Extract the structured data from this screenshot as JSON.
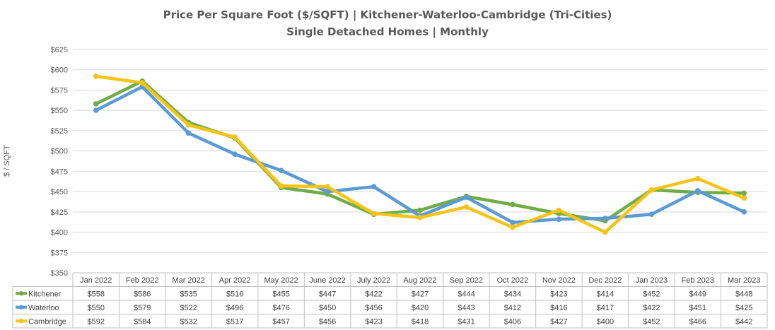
{
  "chart_data": {
    "type": "line",
    "title": "Price Per Square Foot ($/SQFT) | Kitchener-Waterloo-Cambridge (Tri-Cities)",
    "subtitle": "Single Detached Homes | Monthly",
    "ylabel": "$ / SQFT",
    "xlabel": "",
    "ylim": [
      350,
      625
    ],
    "yticks": [
      350,
      375,
      400,
      425,
      450,
      475,
      500,
      525,
      550,
      575,
      600,
      625
    ],
    "ytick_labels": [
      "$350",
      "$375",
      "$400",
      "$425",
      "$450",
      "$475",
      "$500",
      "$525",
      "$550",
      "$575",
      "$600",
      "$625"
    ],
    "grid": true,
    "legend": "data-table-below",
    "categories": [
      "Jan 2022",
      "Feb 2022",
      "Mar 2022",
      "Apr 2022",
      "May 2022",
      "June 2022",
      "July 2022",
      "Aug 2022",
      "Sep 2022",
      "Oct 2022",
      "Nov 2022",
      "Dec 2022",
      "Jan 2023",
      "Feb 2023",
      "Mar 2023"
    ],
    "series": [
      {
        "name": "Kitchener",
        "color": "#70AD47",
        "values": [
          558,
          586,
          535,
          516,
          455,
          447,
          422,
          427,
          444,
          434,
          423,
          414,
          452,
          449,
          448
        ],
        "labels": [
          "$558",
          "$586",
          "$535",
          "$516",
          "$455",
          "$447",
          "$422",
          "$427",
          "$444",
          "$434",
          "$423",
          "$414",
          "$452",
          "$449",
          "$448"
        ]
      },
      {
        "name": "Waterloo",
        "color": "#5B9BD5",
        "values": [
          550,
          579,
          522,
          496,
          476,
          450,
          456,
          420,
          443,
          412,
          416,
          417,
          422,
          451,
          425
        ],
        "labels": [
          "$550",
          "$579",
          "$522",
          "$496",
          "$476",
          "$450",
          "$456",
          "$420",
          "$443",
          "$412",
          "$416",
          "$417",
          "$422",
          "$451",
          "$425"
        ]
      },
      {
        "name": "Cambridge",
        "color": "#F6C416",
        "values": [
          592,
          584,
          532,
          517,
          457,
          456,
          423,
          418,
          431,
          406,
          427,
          400,
          452,
          466,
          442
        ],
        "labels": [
          "$592",
          "$584",
          "$532",
          "$517",
          "$457",
          "$456",
          "$423",
          "$418",
          "$431",
          "$406",
          "$427",
          "$400",
          "$452",
          "$466",
          "$442"
        ]
      }
    ]
  }
}
